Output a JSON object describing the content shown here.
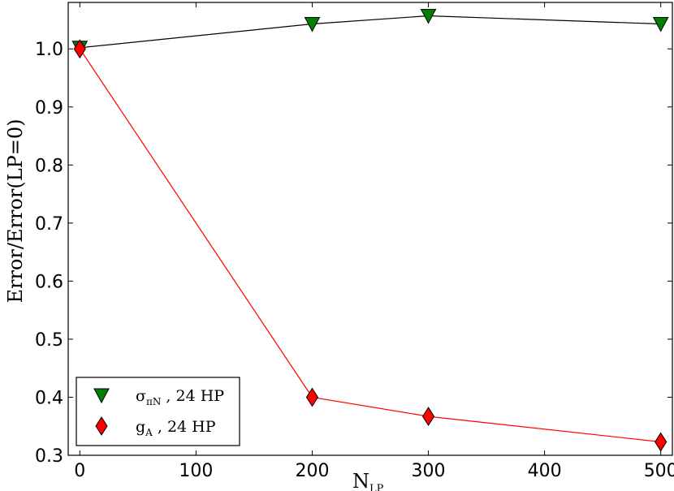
{
  "chart_data": {
    "type": "line",
    "xlabel": {
      "main": "N",
      "sub": "LP"
    },
    "ylabel": "Error/Error(LP=0)",
    "xlim": [
      -10,
      510
    ],
    "ylim": [
      0.3,
      1.08
    ],
    "xticks": [
      0,
      100,
      200,
      300,
      400,
      500
    ],
    "xtick_labels": [
      "0",
      "100",
      "200",
      "300",
      "400",
      "500"
    ],
    "yticks": [
      0.3,
      0.4,
      0.5,
      0.6,
      0.7,
      0.8,
      0.9,
      1.0
    ],
    "ytick_labels": [
      "0.3",
      "0.4",
      "0.5",
      "0.6",
      "0.7",
      "0.8",
      "0.9",
      "1.0"
    ],
    "grid": false,
    "legend_position": "lower-left",
    "series": [
      {
        "name": "σπN , 24 HP",
        "legend": {
          "main": "σ",
          "sub": "πN",
          "rest": " , 24 HP"
        },
        "x": [
          0,
          200,
          300,
          500
        ],
        "y": [
          1.002,
          1.043,
          1.057,
          1.043
        ],
        "line_color": "#000000",
        "marker": "triangle-down",
        "marker_color": "#008000"
      },
      {
        "name": "gA , 24 HP",
        "legend": {
          "main": "g",
          "sub": "A",
          "rest": " , 24 HP"
        },
        "x": [
          0,
          200,
          300,
          500
        ],
        "y": [
          1.0,
          0.4,
          0.367,
          0.323
        ],
        "line_color": "#ff0000",
        "marker": "diamond",
        "marker_color": "#ff0000"
      }
    ]
  }
}
